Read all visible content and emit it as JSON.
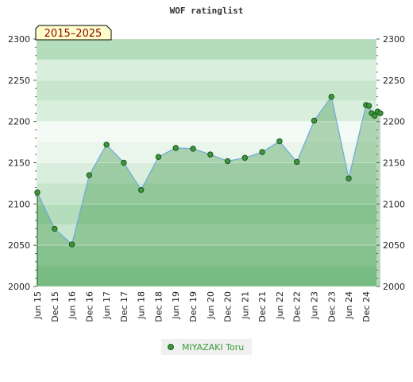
{
  "chart_data": {
    "type": "area",
    "title": "WOF ratinglist",
    "period_label": "2015–2025",
    "ylim": [
      2000,
      2300
    ],
    "y_ticks": [
      2000,
      2050,
      2100,
      2150,
      2200,
      2250,
      2300
    ],
    "x_tick_labels": [
      "Jun 15",
      "Dec 15",
      "Jun 16",
      "Dec 16",
      "Jun 17",
      "Dec 17",
      "Jun 18",
      "Dec 18",
      "Jun 19",
      "Dec 19",
      "Jun 20",
      "Dec 20",
      "Jun 21",
      "Dec 21",
      "Jun 22",
      "Dec 22",
      "Jun 23",
      "Dec 23",
      "Jun 24",
      "Dec 24"
    ],
    "series": [
      {
        "name": "MIYAZAKI Toru",
        "color": "#3a9a3a",
        "line_color": "#6fa8dc",
        "x": [
          "Jun 15",
          "Dec 15",
          "Jun 16",
          "Dec 16",
          "Jun 17",
          "Dec 17",
          "Jun 18",
          "Dec 18",
          "Jun 19",
          "Dec 19",
          "Jun 20",
          "Dec 20",
          "Jun 21",
          "Dec 21",
          "Jun 22",
          "Dec 22",
          "Jun 23",
          "Dec 23",
          "Jun 24",
          "Dec 24",
          "Jan 25",
          "Feb 25",
          "Mar 25",
          "Apr 25",
          "May 25"
        ],
        "x_index": [
          0,
          1,
          2,
          3,
          4,
          5,
          6,
          7,
          8,
          9,
          10,
          11,
          12,
          13,
          14,
          15,
          16,
          17,
          18,
          19,
          19.17,
          19.33,
          19.5,
          19.67,
          19.83
        ],
        "values": [
          2114,
          2070,
          2051,
          2135,
          2172,
          2150,
          2117,
          2157,
          2168,
          2167,
          2160,
          2152,
          2156,
          2163,
          2176,
          2151,
          2201,
          2230,
          2131,
          2220,
          2219,
          2210,
          2207,
          2212,
          2210
        ]
      }
    ],
    "grid": true,
    "legend": "bottom-center"
  }
}
